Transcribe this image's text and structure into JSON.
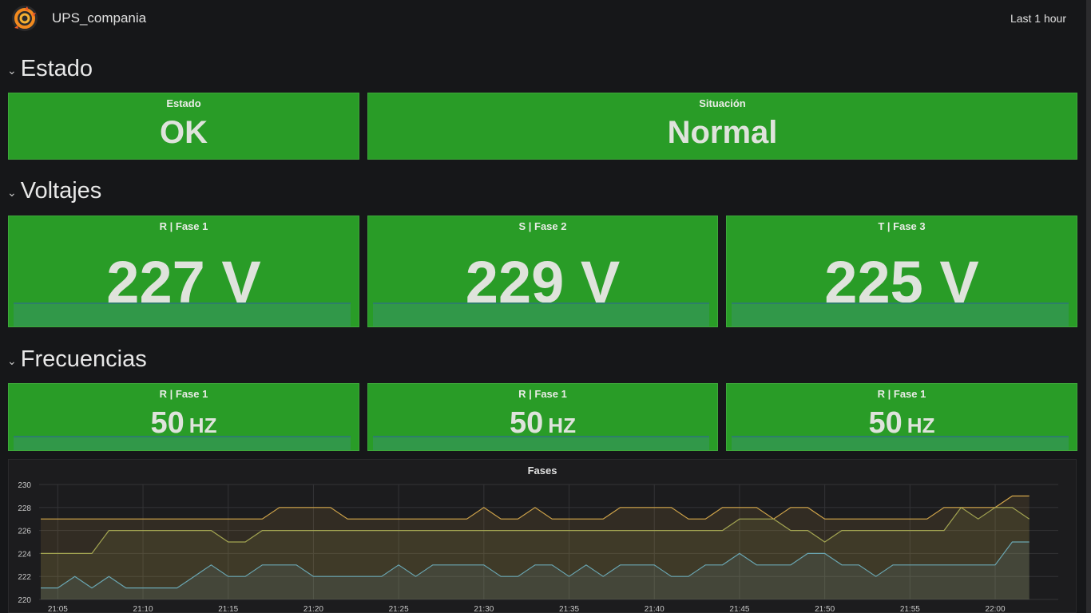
{
  "header": {
    "title": "UPS_compania",
    "time_range": "Last 1 hour"
  },
  "rows": {
    "estado": {
      "title": "Estado",
      "chevron": "⌄"
    },
    "voltajes": {
      "title": "Voltajes",
      "chevron": "⌄"
    },
    "frecuencias": {
      "title": "Frecuencias",
      "chevron": "⌄"
    }
  },
  "estado_panels": [
    {
      "title": "Estado",
      "value": "OK"
    },
    {
      "title": "Situación",
      "value": "Normal"
    }
  ],
  "voltage_panels": [
    {
      "title": "R | Fase 1",
      "value": "227 V"
    },
    {
      "title": "S | Fase 2",
      "value": "229 V"
    },
    {
      "title": "T | Fase 3",
      "value": "225 V"
    }
  ],
  "freq_panels": [
    {
      "title": "R | Fase 1",
      "value": "50",
      "unit": "HZ"
    },
    {
      "title": "R | Fase 1",
      "value": "50",
      "unit": "HZ"
    },
    {
      "title": "R | Fase 1",
      "value": "50",
      "unit": "HZ"
    }
  ],
  "colors": {
    "panel_green": "#299c27",
    "series_yellow": "#d2a64b",
    "series_olive": "#a3a552",
    "series_blue": "#6aa6b2",
    "background": "#161719"
  },
  "icons": {
    "logo": "grafana-logo-icon",
    "row_toggle": "chevron-down-icon"
  },
  "chart_data": {
    "type": "line",
    "title": "Fases",
    "x": [
      "21:04",
      "21:05",
      "21:06",
      "21:07",
      "21:08",
      "21:09",
      "21:10",
      "21:11",
      "21:12",
      "21:13",
      "21:14",
      "21:15",
      "21:16",
      "21:17",
      "21:18",
      "21:19",
      "21:20",
      "21:21",
      "21:22",
      "21:23",
      "21:24",
      "21:25",
      "21:26",
      "21:27",
      "21:28",
      "21:29",
      "21:30",
      "21:31",
      "21:32",
      "21:33",
      "21:34",
      "21:35",
      "21:36",
      "21:37",
      "21:38",
      "21:39",
      "21:40",
      "21:41",
      "21:42",
      "21:43",
      "21:44",
      "21:45",
      "21:46",
      "21:47",
      "21:48",
      "21:49",
      "21:50",
      "21:51",
      "21:52",
      "21:53",
      "21:54",
      "21:55",
      "21:56",
      "21:57",
      "21:58",
      "21:59",
      "22:00",
      "22:01",
      "22:02"
    ],
    "x_ticks": [
      "21:05",
      "21:10",
      "21:15",
      "21:20",
      "21:25",
      "21:30",
      "21:35",
      "21:40",
      "21:45",
      "21:50",
      "21:55",
      "22:00"
    ],
    "y_ticks": [
      220,
      222,
      224,
      226,
      228,
      230
    ],
    "ylim": [
      220,
      230
    ],
    "grid": true,
    "series": [
      {
        "color": "#d2a64b",
        "values": [
          227,
          227,
          227,
          227,
          227,
          227,
          227,
          227,
          227,
          227,
          227,
          227,
          227,
          227,
          228,
          228,
          228,
          228,
          227,
          227,
          227,
          227,
          227,
          227,
          227,
          227,
          228,
          227,
          227,
          228,
          227,
          227,
          227,
          227,
          228,
          228,
          228,
          228,
          227,
          227,
          228,
          228,
          228,
          227,
          228,
          228,
          227,
          227,
          227,
          227,
          227,
          227,
          227,
          228,
          228,
          228,
          228,
          229,
          229
        ]
      },
      {
        "color": "#a3a552",
        "values": [
          224,
          224,
          224,
          224,
          226,
          226,
          226,
          226,
          226,
          226,
          226,
          225,
          225,
          226,
          226,
          226,
          226,
          226,
          226,
          226,
          226,
          226,
          226,
          226,
          226,
          226,
          226,
          226,
          226,
          226,
          226,
          226,
          226,
          226,
          226,
          226,
          226,
          226,
          226,
          226,
          226,
          227,
          227,
          227,
          226,
          226,
          225,
          226,
          226,
          226,
          226,
          226,
          226,
          226,
          228,
          227,
          228,
          228,
          227
        ]
      },
      {
        "color": "#6aa6b2",
        "values": [
          221,
          221,
          222,
          221,
          222,
          221,
          221,
          221,
          221,
          222,
          223,
          222,
          222,
          223,
          223,
          223,
          222,
          222,
          222,
          222,
          222,
          223,
          222,
          223,
          223,
          223,
          223,
          222,
          222,
          223,
          223,
          222,
          223,
          222,
          223,
          223,
          223,
          222,
          222,
          223,
          223,
          224,
          223,
          223,
          223,
          224,
          224,
          223,
          223,
          222,
          223,
          223,
          223,
          223,
          223,
          223,
          223,
          225,
          225
        ]
      }
    ]
  }
}
